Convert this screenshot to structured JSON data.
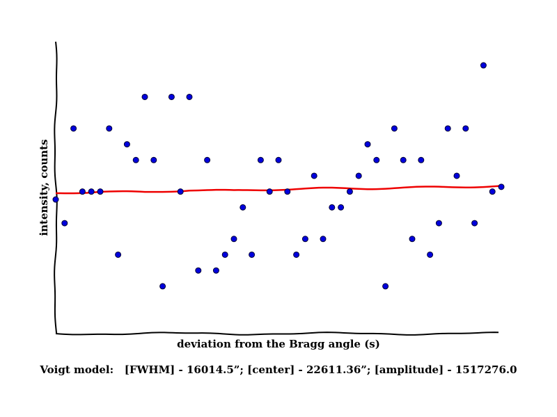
{
  "chart_data": {
    "type": "scatter",
    "title": "",
    "xlabel": "deviation from the Bragg angle (s)",
    "ylabel": "intensity, counts",
    "xlim": [
      0,
      50
    ],
    "ylim": [
      0,
      18.5
    ],
    "grid": false,
    "x_ticks_shown": false,
    "y_ticks_shown": false,
    "series": [
      {
        "kind": "points",
        "color": "#0000dd",
        "edge_color": "#000033",
        "x": [
          0,
          1,
          2,
          3,
          4,
          5,
          6,
          7,
          8,
          9,
          10,
          11,
          12,
          13,
          14,
          15,
          16,
          17,
          18,
          19,
          20,
          21,
          22,
          23,
          24,
          25,
          26,
          27,
          28,
          29,
          30,
          31,
          32,
          33,
          34,
          35,
          36,
          37,
          38,
          39,
          40,
          41,
          42,
          43,
          44,
          45,
          46,
          47,
          48,
          49,
          50
        ],
        "y": [
          8.5,
          7,
          13,
          9,
          9,
          9,
          13,
          5,
          12,
          11,
          15,
          11,
          3,
          15,
          9,
          15,
          4,
          11,
          4,
          5,
          6,
          8,
          5,
          11,
          9,
          11,
          9,
          5,
          6,
          10,
          6,
          8,
          8,
          9,
          10,
          12,
          11,
          3,
          13,
          11,
          6,
          11,
          5,
          7,
          13,
          10,
          13,
          7,
          17,
          9,
          9.3
        ]
      },
      {
        "kind": "line",
        "color": "#ee0000",
        "x": [
          0,
          5,
          10,
          15,
          20,
          25,
          30,
          35,
          40,
          45,
          50
        ],
        "y": [
          8.9,
          9.0,
          8.95,
          9.1,
          9.05,
          9.15,
          9.2,
          9.2,
          9.25,
          9.3,
          9.35
        ]
      }
    ]
  },
  "caption": "Voigt model:   [FWHM] - 16014.5”; [center] - 22611.36”; [amplitude] - 1517276.0"
}
